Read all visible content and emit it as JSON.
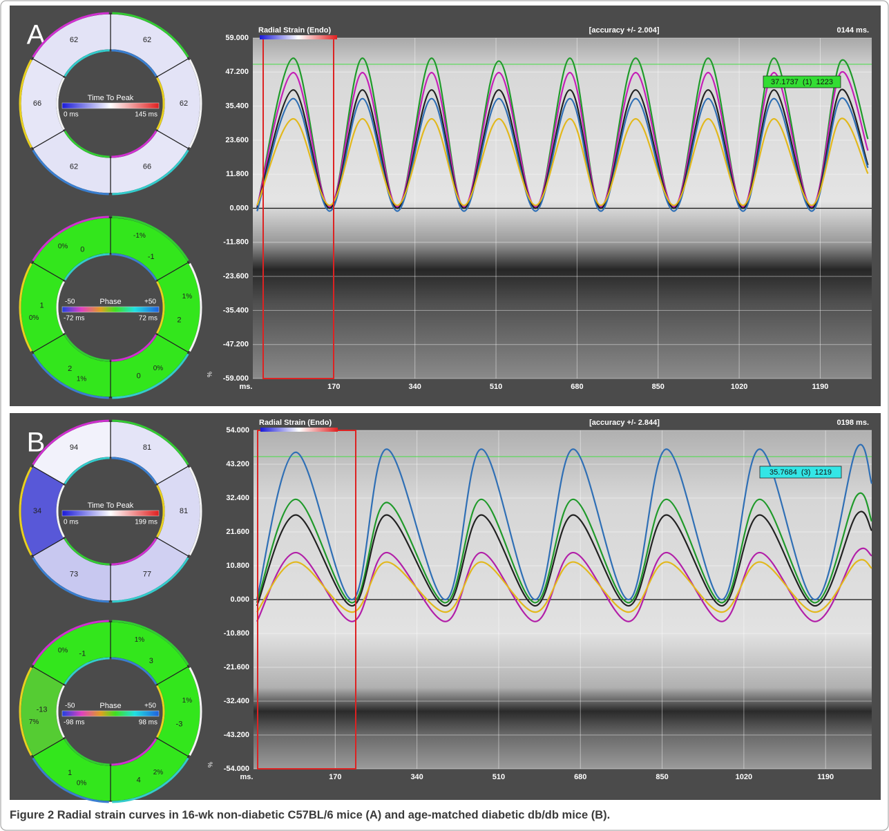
{
  "panels": [
    {
      "label": "A",
      "time_to_peak": {
        "title": "Time To Peak",
        "min_label": "0 ms",
        "max_label": "145 ms",
        "segments": [
          {
            "value": 62,
            "color": "#e3e3f6"
          },
          {
            "value": 62,
            "color": "#e3e3f6"
          },
          {
            "value": 66,
            "color": "#e6e6f7"
          },
          {
            "value": 62,
            "color": "#e3e3f6"
          },
          {
            "value": 66,
            "color": "#e6e6f7"
          },
          {
            "value": 62,
            "color": "#e3e3f6"
          }
        ]
      },
      "phase": {
        "title": "Phase",
        "scale_min": "-50",
        "scale_max": "+50",
        "min_label": "-72 ms",
        "max_label": "72 ms",
        "segments": [
          {
            "percent": "-1%",
            "value": -1,
            "color": "#33e61c"
          },
          {
            "percent": "1%",
            "value": 2,
            "color": "#33e61c"
          },
          {
            "percent": "0%",
            "value": 0,
            "color": "#33e61c"
          },
          {
            "percent": "1%",
            "value": 2,
            "color": "#33e61c"
          },
          {
            "percent": "0%",
            "value": 1,
            "color": "#33e61c"
          },
          {
            "percent": "0%",
            "value": 0,
            "color": "#33e61c"
          }
        ]
      }
    },
    {
      "label": "B",
      "time_to_peak": {
        "title": "Time To Peak",
        "min_label": "0 ms",
        "max_label": "199 ms",
        "segments": [
          {
            "value": 81,
            "color": "#e4e4f7"
          },
          {
            "value": 81,
            "color": "#dadaf4"
          },
          {
            "value": 77,
            "color": "#d0d0f2"
          },
          {
            "value": 73,
            "color": "#c8c8f0"
          },
          {
            "value": 34,
            "color": "#5858d8"
          },
          {
            "value": 94,
            "color": "#f2f2fb"
          }
        ]
      },
      "phase": {
        "title": "Phase",
        "scale_min": "-50",
        "scale_max": "+50",
        "min_label": "-98 ms",
        "max_label": "98 ms",
        "segments": [
          {
            "percent": "1%",
            "value": 3,
            "color": "#33e61c"
          },
          {
            "percent": "1%",
            "value": -3,
            "color": "#33e61c"
          },
          {
            "percent": "2%",
            "value": 4,
            "color": "#33e61c"
          },
          {
            "percent": "0%",
            "value": 1,
            "color": "#33e61c"
          },
          {
            "percent": "7%",
            "value": -13,
            "color": "#55cc33"
          },
          {
            "percent": "0%",
            "value": -1,
            "color": "#33e61c"
          }
        ]
      }
    }
  ],
  "ring_colors": [
    "#33cc33",
    "#f4f4f4",
    "#33cccc",
    "#3a7fd0",
    "#e8d020",
    "#d030d0"
  ],
  "chart_data": [
    {
      "type": "line",
      "title": "Radial Strain (Endo)",
      "subtitle": "[accuracy +/- 2.004]",
      "annotation": "0144 ms.",
      "tooltip": "37.1737  (1)  1223",
      "tooltip_color": "#33dd33",
      "x_label": "ms.",
      "y_label": "%",
      "grid": true,
      "xlim": [
        0,
        1298
      ],
      "xticks": [
        170,
        340,
        510,
        680,
        850,
        1020,
        1190
      ],
      "ylim": [
        -59,
        59
      ],
      "yticks": [
        {
          "value": 59,
          "label": "59.000"
        },
        {
          "value": 47.2,
          "label": "47.200"
        },
        {
          "value": 35.4,
          "label": "35.400"
        },
        {
          "value": 23.6,
          "label": "23.600"
        },
        {
          "value": 11.8,
          "label": "11.800"
        },
        {
          "value": 0,
          "label": "0.000"
        },
        {
          "value": -11.8,
          "label": "-11.800"
        },
        {
          "value": -23.6,
          "label": "-23.600"
        },
        {
          "value": -35.4,
          "label": "-35.400"
        },
        {
          "value": -47.2,
          "label": "-47.200"
        },
        {
          "value": -59,
          "label": "-59.000"
        }
      ],
      "x": [
        9,
        85,
        161,
        230,
        303,
        375,
        443,
        516,
        593,
        665,
        730,
        803,
        883,
        955,
        1028,
        1093,
        1172,
        1233,
        1290
      ],
      "series": [
        {
          "color": "#1f9a2a",
          "values": [
            0,
            52,
            0,
            52,
            0,
            52,
            0,
            51,
            0,
            52,
            0,
            52,
            0,
            52,
            0,
            52,
            0,
            51,
            24
          ]
        },
        {
          "color": "#c41fb6",
          "values": [
            0.5,
            47,
            0.5,
            47,
            0.5,
            47,
            0.5,
            47,
            0.5,
            47,
            0.5,
            47,
            0.5,
            47,
            0.5,
            47,
            0.5,
            47,
            20
          ]
        },
        {
          "color": "#222222",
          "values": [
            0,
            41,
            0,
            41,
            0,
            41,
            0,
            41,
            0,
            41,
            0,
            41,
            0,
            41,
            0,
            41,
            0,
            41,
            15
          ]
        },
        {
          "color": "#2f6fb5",
          "values": [
            -1,
            38,
            -1,
            38,
            -1,
            38,
            -1,
            38,
            -1,
            38,
            -1,
            38,
            -1,
            38,
            -1,
            38,
            -1,
            38,
            14
          ]
        },
        {
          "color": "#e2b81c",
          "values": [
            1,
            31,
            1,
            31,
            1,
            31,
            1,
            31,
            1,
            31,
            1,
            31,
            1,
            31,
            1,
            31,
            1,
            31,
            12
          ]
        }
      ]
    },
    {
      "type": "line",
      "title": "Radial Strain (Endo)",
      "subtitle": "[accuracy +/- 2.844]",
      "annotation": "0198 ms.",
      "tooltip": "35.7684  (3)  1219",
      "tooltip_color": "#33e6e6",
      "x_label": "ms.",
      "y_label": "%",
      "grid": true,
      "xlim": [
        0,
        1286
      ],
      "xticks": [
        170,
        340,
        510,
        680,
        850,
        1020,
        1190
      ],
      "ylim": [
        -54,
        54
      ],
      "yticks": [
        {
          "value": 54,
          "label": "54.000"
        },
        {
          "value": 43.2,
          "label": "43.200"
        },
        {
          "value": 32.4,
          "label": "32.400"
        },
        {
          "value": 21.6,
          "label": "21.600"
        },
        {
          "value": 10.8,
          "label": "10.800"
        },
        {
          "value": 0,
          "label": "0.000"
        },
        {
          "value": -10.8,
          "label": "-10.800"
        },
        {
          "value": -21.6,
          "label": "-21.600"
        },
        {
          "value": -32.4,
          "label": "-32.400"
        },
        {
          "value": -43.2,
          "label": "-43.200"
        },
        {
          "value": -54,
          "label": "-54.000"
        }
      ],
      "x": [
        7,
        88,
        205,
        277,
        399,
        474,
        586,
        665,
        780,
        859,
        974,
        1053,
        1168,
        1254,
        1286
      ],
      "series": [
        {
          "color": "#2f6fb5",
          "values": [
            0,
            47,
            0,
            48,
            0,
            48,
            0,
            48,
            0,
            48,
            0,
            48,
            0,
            48,
            37
          ]
        },
        {
          "color": "#1f9a2a",
          "values": [
            -1,
            32,
            -1,
            31,
            -1,
            32,
            -1,
            32,
            -1,
            32,
            -1,
            32,
            -1,
            33,
            25
          ]
        },
        {
          "color": "#222222",
          "values": [
            -2,
            27,
            -2,
            27,
            -2,
            27,
            -2,
            27,
            -2,
            27,
            -2,
            27,
            -2,
            27,
            22
          ]
        },
        {
          "color": "#b21fa8",
          "values": [
            -7,
            15,
            -7,
            15,
            -7,
            15,
            -7,
            15,
            -7,
            15,
            -7,
            15,
            -7,
            15,
            14
          ]
        },
        {
          "color": "#e2b81c",
          "values": [
            -4,
            12,
            -4,
            12,
            -4,
            12,
            -4,
            12,
            -4,
            12,
            -4,
            12,
            -4,
            12,
            10
          ]
        }
      ]
    }
  ],
  "caption": {
    "label": "Figure 2",
    "text": "Radial strain curves in 16-wk non-diabetic C57BL/6 mice (A) and age-matched diabetic db/db mice (B)."
  }
}
